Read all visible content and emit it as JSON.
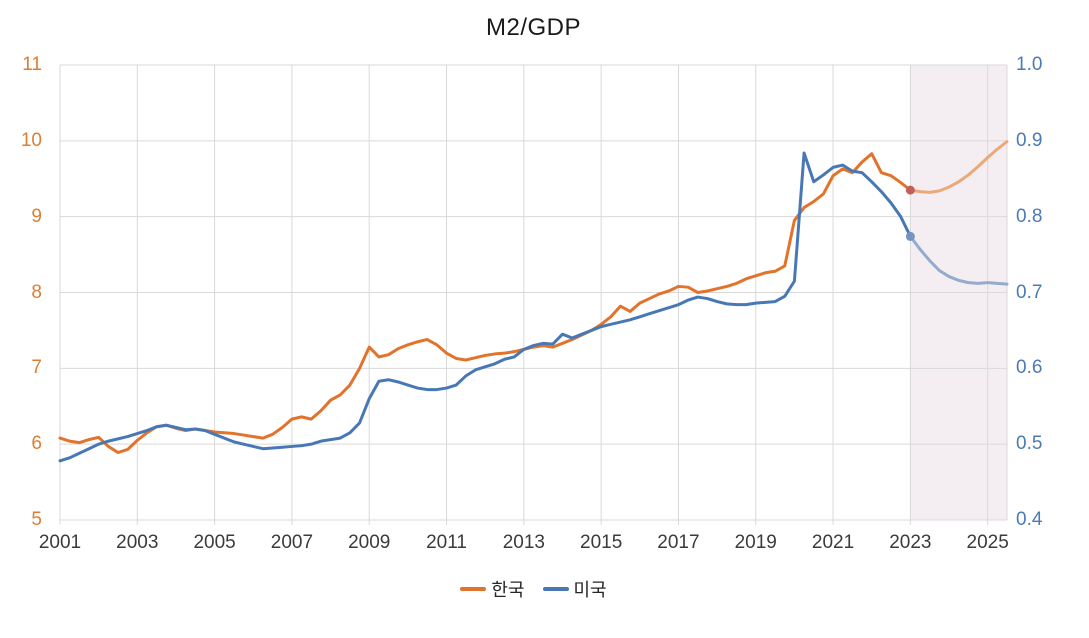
{
  "chart_data": {
    "type": "line",
    "title": "M2/GDP",
    "grid_color": "#D9D9D9",
    "x_axis": {
      "range": [
        2001,
        2025.5
      ],
      "ticks": [
        2001,
        2003,
        2005,
        2007,
        2009,
        2011,
        2013,
        2015,
        2017,
        2019,
        2021,
        2023,
        2025
      ],
      "label_color": "#3B3B3B"
    },
    "y_axis_left": {
      "range": [
        5,
        11
      ],
      "ticks": [
        5,
        6,
        7,
        8,
        9,
        10,
        11
      ],
      "tick_labels": [
        "5",
        "6",
        "7",
        "8",
        "9",
        "10",
        "11"
      ],
      "label_color": "#DE7E33"
    },
    "y_axis_right": {
      "range": [
        0.4,
        1.0
      ],
      "ticks": [
        0.4,
        0.5,
        0.6,
        0.7,
        0.8,
        0.9,
        1.0
      ],
      "tick_labels": [
        "0.4",
        "0.5",
        "0.6",
        "0.7",
        "0.8",
        "0.9",
        "1.0"
      ],
      "label_color": "#4B7AB5"
    },
    "forecast_region": {
      "start": 2023,
      "end": 2025.5,
      "fill": "#F4EEF3"
    },
    "legend": {
      "position": "bottom",
      "items": [
        "한국",
        "미국"
      ]
    },
    "series": [
      {
        "name": "한국",
        "axis": "left",
        "color": "#E2732C",
        "forecast_color": "#EBA878",
        "marker_color": "#C2605C",
        "x_start": 2001,
        "x_step": 0.25,
        "values": [
          6.08,
          6.04,
          6.02,
          6.06,
          6.09,
          5.97,
          5.89,
          5.93,
          6.05,
          6.15,
          6.23,
          6.25,
          6.21,
          6.18,
          6.2,
          6.18,
          6.16,
          6.15,
          6.14,
          6.12,
          6.1,
          6.08,
          6.13,
          6.22,
          6.33,
          6.36,
          6.33,
          6.44,
          6.58,
          6.65,
          6.78,
          7.0,
          7.28,
          7.15,
          7.18,
          7.26,
          7.31,
          7.35,
          7.38,
          7.31,
          7.2,
          7.13,
          7.11,
          7.14,
          7.17,
          7.19,
          7.2,
          7.22,
          7.25,
          7.28,
          7.3,
          7.28,
          7.33,
          7.38,
          7.44,
          7.5,
          7.58,
          7.68,
          7.82,
          7.75,
          7.86,
          7.92,
          7.98,
          8.02,
          8.08,
          8.07,
          8.0,
          8.02,
          8.05,
          8.08,
          8.12,
          8.18,
          8.22,
          8.26,
          8.28,
          8.35,
          8.95,
          9.12,
          9.2,
          9.3,
          9.54,
          9.63,
          9.58,
          9.72,
          9.83,
          9.58,
          9.54,
          9.45,
          9.35
        ],
        "forecast_x_start": 2023,
        "forecast_values": [
          9.35,
          9.33,
          9.32,
          9.34,
          9.39,
          9.46,
          9.55,
          9.66,
          9.78,
          9.89,
          9.99
        ]
      },
      {
        "name": "미국",
        "axis": "right",
        "color": "#4778B5",
        "forecast_color": "#93ABCC",
        "marker_color": "#7593BF",
        "x_start": 2001,
        "x_step": 0.25,
        "values": [
          0.478,
          0.482,
          0.488,
          0.494,
          0.5,
          0.504,
          0.507,
          0.51,
          0.514,
          0.518,
          0.523,
          0.525,
          0.522,
          0.519,
          0.52,
          0.518,
          0.513,
          0.508,
          0.503,
          0.5,
          0.497,
          0.494,
          0.495,
          0.496,
          0.497,
          0.498,
          0.5,
          0.504,
          0.506,
          0.508,
          0.515,
          0.528,
          0.56,
          0.583,
          0.585,
          0.582,
          0.578,
          0.574,
          0.572,
          0.572,
          0.574,
          0.578,
          0.59,
          0.598,
          0.602,
          0.606,
          0.612,
          0.615,
          0.625,
          0.63,
          0.633,
          0.632,
          0.645,
          0.64,
          0.645,
          0.65,
          0.655,
          0.658,
          0.661,
          0.664,
          0.668,
          0.672,
          0.676,
          0.68,
          0.684,
          0.69,
          0.694,
          0.692,
          0.688,
          0.685,
          0.684,
          0.684,
          0.686,
          0.687,
          0.688,
          0.695,
          0.715,
          0.884,
          0.846,
          0.855,
          0.865,
          0.868,
          0.86,
          0.858,
          0.846,
          0.833,
          0.818,
          0.8,
          0.774
        ],
        "forecast_x_start": 2023,
        "forecast_values": [
          0.774,
          0.757,
          0.742,
          0.729,
          0.721,
          0.716,
          0.713,
          0.712,
          0.713,
          0.712,
          0.711
        ]
      }
    ]
  }
}
